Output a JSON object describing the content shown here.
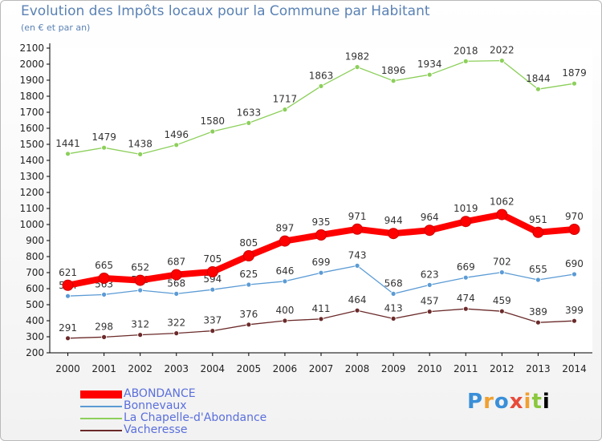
{
  "title": "Evolution des Impôts locaux pour la Commune par Habitant",
  "subtitle": "(en € et par an)",
  "logo": {
    "chars": [
      "P",
      "r",
      "o",
      "x",
      "i",
      "t",
      "i"
    ],
    "text": "Proxiti"
  },
  "chart_data": {
    "type": "line",
    "title": "Evolution des Impôts locaux pour la Commune par Habitant",
    "subtitle": "(en € et par an)",
    "xlabel": "",
    "ylabel": "",
    "ylim": [
      200,
      2100
    ],
    "yticks": [
      200,
      300,
      400,
      500,
      600,
      700,
      800,
      900,
      1000,
      1100,
      1200,
      1300,
      1400,
      1500,
      1600,
      1700,
      1800,
      1900,
      2000,
      2100
    ],
    "grid": false,
    "legend_position": "bottom-left",
    "x": [
      2000,
      2001,
      2002,
      2003,
      2004,
      2005,
      2006,
      2007,
      2008,
      2009,
      2010,
      2011,
      2012,
      2013,
      2014
    ],
    "series": [
      {
        "name": "ABONDANCE",
        "color": "#ff0000",
        "values": [
          621,
          665,
          652,
          687,
          705,
          805,
          897,
          935,
          971,
          944,
          964,
          1019,
          1062,
          951,
          970
        ]
      },
      {
        "name": "Bonnevaux",
        "color": "#5b9bd5",
        "values": [
          554,
          563,
          590,
          568,
          594,
          625,
          646,
          699,
          743,
          568,
          623,
          669,
          702,
          655,
          690
        ]
      },
      {
        "name": "La Chapelle-d'Abondance",
        "color": "#8ccf5a",
        "values": [
          1441,
          1479,
          1438,
          1496,
          1580,
          1633,
          1717,
          1863,
          1982,
          1896,
          1934,
          2018,
          2022,
          1844,
          1879
        ]
      },
      {
        "name": "Vacheresse",
        "color": "#6b2a2a",
        "values": [
          291,
          298,
          312,
          322,
          337,
          376,
          400,
          411,
          464,
          413,
          457,
          474,
          459,
          389,
          399
        ]
      }
    ]
  }
}
